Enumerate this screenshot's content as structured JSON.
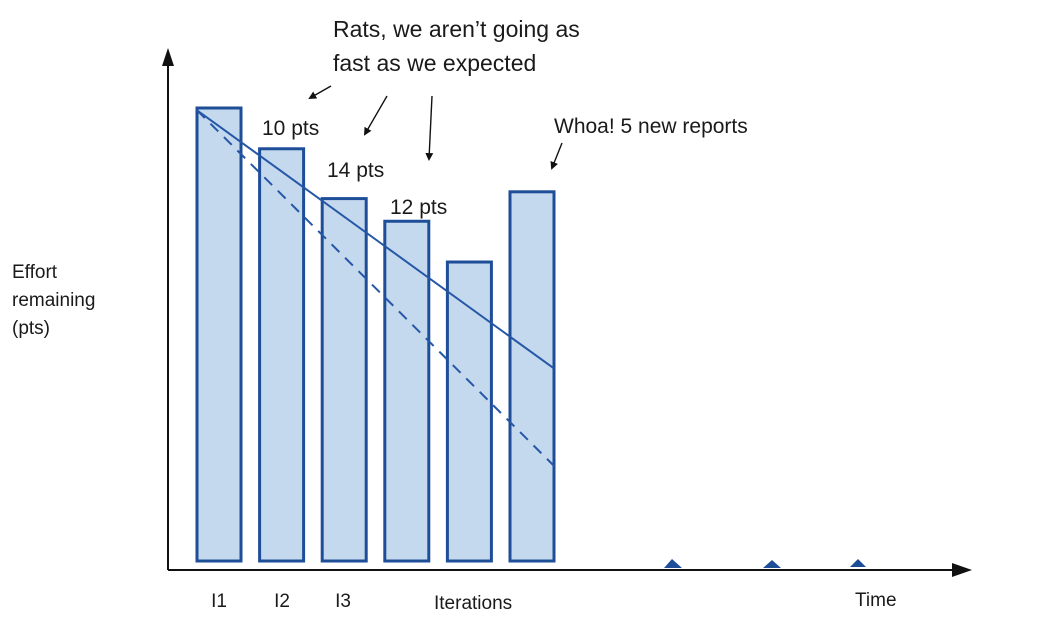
{
  "chart_data": {
    "type": "bar",
    "title": "",
    "ylabel": "Effort remaining (pts)",
    "ylabel_lines": [
      "Effort",
      "remaining",
      "(pts)"
    ],
    "xlabel": "Iterations",
    "time_label": "Time",
    "ylim": [
      0,
      100
    ],
    "categories": [
      "I1",
      "I2",
      "I3",
      "",
      "",
      ""
    ],
    "values": [
      100,
      91,
      80,
      75,
      66,
      81.5
    ],
    "trend_lines": [
      {
        "style": "solid",
        "start": {
          "x": 1,
          "y": 99.5
        },
        "end": {
          "x": 6,
          "y": 42.5
        }
      },
      {
        "style": "dashed",
        "start": {
          "x": 1,
          "y": 99.5
        },
        "end": {
          "x": 6,
          "y": 21
        }
      }
    ],
    "annotations": {
      "velocity_labels": [
        "10 pts",
        "14 pts",
        "12 pts"
      ],
      "rats_lines": [
        "Rats, we aren’t going as",
        "fast as we expected"
      ],
      "whoa": "Whoa! 5 new reports"
    },
    "axis_color": "#111111",
    "bar_fill": "#c5d9ee",
    "bar_stroke": "#1f4e98",
    "line_color": "#2557a7"
  }
}
